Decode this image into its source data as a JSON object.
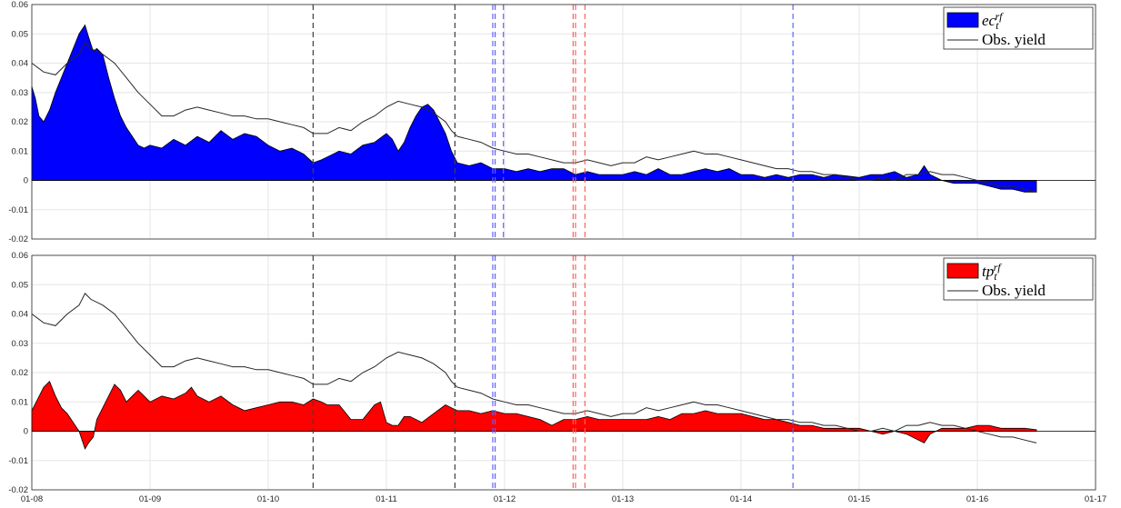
{
  "chart_data": [
    {
      "type": "area",
      "panel": "top",
      "ylim": [
        -0.02,
        0.06
      ],
      "yticks": [
        "-0.02",
        "-0.01",
        "0",
        "0.01",
        "0.02",
        "0.03",
        "0.04",
        "0.05",
        "0.06"
      ],
      "xlim": [
        2008.0,
        2017.0
      ],
      "grid": true,
      "legend_placement": "top-right",
      "colors": {
        "fill": "#0000ff",
        "line": "#262626"
      },
      "series": [
        {
          "name_base": "ec",
          "name_sub": "t",
          "name_sup": "rf",
          "kind": "area",
          "x": [
            2008.0,
            2008.03,
            2008.06,
            2008.1,
            2008.15,
            2008.2,
            2008.25,
            2008.3,
            2008.35,
            2008.4,
            2008.45,
            2008.48,
            2008.52,
            2008.55,
            2008.6,
            2008.65,
            2008.7,
            2008.75,
            2008.8,
            2008.85,
            2008.9,
            2008.95,
            2009.0,
            2009.1,
            2009.2,
            2009.3,
            2009.4,
            2009.5,
            2009.6,
            2009.7,
            2009.8,
            2009.9,
            2010.0,
            2010.1,
            2010.2,
            2010.3,
            2010.38,
            2010.45,
            2010.5,
            2010.6,
            2010.7,
            2010.8,
            2010.9,
            2011.0,
            2011.05,
            2011.1,
            2011.15,
            2011.2,
            2011.25,
            2011.3,
            2011.35,
            2011.4,
            2011.45,
            2011.5,
            2011.55,
            2011.6,
            2011.7,
            2011.8,
            2011.9,
            2012.0,
            2012.1,
            2012.2,
            2012.3,
            2012.4,
            2012.5,
            2012.6,
            2012.7,
            2012.8,
            2012.9,
            2013.0,
            2013.1,
            2013.2,
            2013.3,
            2013.4,
            2013.5,
            2013.6,
            2013.7,
            2013.8,
            2013.9,
            2014.0,
            2014.1,
            2014.2,
            2014.3,
            2014.4,
            2014.5,
            2014.6,
            2014.7,
            2014.8,
            2014.9,
            2015.0,
            2015.1,
            2015.2,
            2015.3,
            2015.4,
            2015.5,
            2015.55,
            2015.6,
            2015.7,
            2015.8,
            2015.9,
            2016.0,
            2016.1,
            2016.2,
            2016.3,
            2016.4,
            2016.5
          ],
          "y": [
            0.032,
            0.028,
            0.022,
            0.02,
            0.024,
            0.03,
            0.035,
            0.04,
            0.045,
            0.05,
            0.053,
            0.049,
            0.044,
            0.045,
            0.043,
            0.035,
            0.028,
            0.022,
            0.018,
            0.015,
            0.012,
            0.011,
            0.012,
            0.011,
            0.014,
            0.012,
            0.015,
            0.013,
            0.017,
            0.014,
            0.016,
            0.015,
            0.012,
            0.01,
            0.011,
            0.009,
            0.006,
            0.007,
            0.008,
            0.01,
            0.009,
            0.012,
            0.013,
            0.016,
            0.014,
            0.01,
            0.013,
            0.018,
            0.022,
            0.025,
            0.026,
            0.024,
            0.02,
            0.016,
            0.01,
            0.006,
            0.005,
            0.006,
            0.004,
            0.004,
            0.003,
            0.004,
            0.003,
            0.004,
            0.004,
            0.002,
            0.003,
            0.002,
            0.002,
            0.002,
            0.003,
            0.002,
            0.004,
            0.002,
            0.002,
            0.003,
            0.004,
            0.003,
            0.004,
            0.002,
            0.002,
            0.001,
            0.002,
            0.001,
            0.002,
            0.002,
            0.001,
            0.002,
            0.0015,
            0.001,
            0.002,
            0.002,
            0.003,
            0.001,
            0.002,
            0.005,
            0.002,
            0.0,
            -0.001,
            -0.001,
            -0.001,
            -0.002,
            -0.003,
            -0.003,
            -0.004,
            -0.004
          ]
        },
        {
          "name": "Obs. yield",
          "kind": "line",
          "x": [
            2008.0,
            2008.1,
            2008.2,
            2008.3,
            2008.4,
            2008.45,
            2008.5,
            2008.6,
            2008.7,
            2008.8,
            2008.9,
            2009.0,
            2009.1,
            2009.2,
            2009.3,
            2009.4,
            2009.5,
            2009.6,
            2009.7,
            2009.8,
            2009.9,
            2010.0,
            2010.1,
            2010.2,
            2010.3,
            2010.38,
            2010.5,
            2010.6,
            2010.7,
            2010.8,
            2010.9,
            2011.0,
            2011.1,
            2011.2,
            2011.3,
            2011.4,
            2011.5,
            2011.55,
            2011.6,
            2011.7,
            2011.8,
            2011.9,
            2012.0,
            2012.1,
            2012.2,
            2012.3,
            2012.4,
            2012.5,
            2012.6,
            2012.7,
            2012.8,
            2012.9,
            2013.0,
            2013.1,
            2013.2,
            2013.3,
            2013.4,
            2013.5,
            2013.6,
            2013.7,
            2013.8,
            2013.9,
            2014.0,
            2014.1,
            2014.2,
            2014.3,
            2014.4,
            2014.5,
            2014.6,
            2014.7,
            2014.8,
            2014.9,
            2015.0,
            2015.1,
            2015.2,
            2015.3,
            2015.4,
            2015.5,
            2015.6,
            2015.7,
            2015.8,
            2015.9,
            2016.0,
            2016.1,
            2016.2,
            2016.3,
            2016.4,
            2016.5
          ],
          "y": [
            0.04,
            0.037,
            0.036,
            0.04,
            0.043,
            0.047,
            0.045,
            0.043,
            0.04,
            0.035,
            0.03,
            0.026,
            0.022,
            0.022,
            0.024,
            0.025,
            0.024,
            0.023,
            0.022,
            0.022,
            0.021,
            0.021,
            0.02,
            0.019,
            0.018,
            0.016,
            0.016,
            0.018,
            0.017,
            0.02,
            0.022,
            0.025,
            0.027,
            0.026,
            0.025,
            0.023,
            0.02,
            0.017,
            0.015,
            0.014,
            0.013,
            0.011,
            0.01,
            0.009,
            0.009,
            0.008,
            0.007,
            0.006,
            0.006,
            0.007,
            0.006,
            0.005,
            0.006,
            0.006,
            0.008,
            0.007,
            0.008,
            0.009,
            0.01,
            0.009,
            0.009,
            0.008,
            0.007,
            0.006,
            0.005,
            0.004,
            0.004,
            0.003,
            0.003,
            0.002,
            0.002,
            0.001,
            0.0,
            0.0,
            0.001,
            0.0,
            0.002,
            0.002,
            0.003,
            0.002,
            0.002,
            0.001,
            0.0,
            -0.001,
            -0.002,
            -0.002,
            -0.003,
            -0.004
          ]
        }
      ],
      "vlines": [
        {
          "x": 2010.38,
          "color": "#404040"
        },
        {
          "x": 2011.58,
          "color": "#404040"
        },
        {
          "x": 2011.9,
          "color": "#6060ff"
        },
        {
          "x": 2011.92,
          "color": "#6060ff"
        },
        {
          "x": 2011.99,
          "color": "#6060ff"
        },
        {
          "x": 2012.58,
          "color": "#ff6060"
        },
        {
          "x": 2012.6,
          "color": "#ff6060"
        },
        {
          "x": 2012.68,
          "color": "#ff6060"
        },
        {
          "x": 2014.44,
          "color": "#6060ff"
        }
      ]
    },
    {
      "type": "area",
      "panel": "bottom",
      "ylim": [
        -0.02,
        0.06
      ],
      "yticks": [
        "-0.02",
        "-0.01",
        "0",
        "0.01",
        "0.02",
        "0.03",
        "0.04",
        "0.05",
        "0.06"
      ],
      "xlim": [
        2008.0,
        2017.0
      ],
      "xticks": [
        "01-08",
        "01-09",
        "01-10",
        "01-11",
        "01-12",
        "01-13",
        "01-14",
        "01-15",
        "01-16",
        "01-17"
      ],
      "grid": true,
      "legend_placement": "top-right",
      "colors": {
        "fill": "#ff0000",
        "line": "#262626"
      },
      "series": [
        {
          "name_base": "tp",
          "name_sub": "t",
          "name_sup": "rf",
          "kind": "area",
          "x": [
            2008.0,
            2008.05,
            2008.1,
            2008.15,
            2008.2,
            2008.25,
            2008.3,
            2008.35,
            2008.4,
            2008.45,
            2008.48,
            2008.52,
            2008.55,
            2008.6,
            2008.65,
            2008.7,
            2008.75,
            2008.8,
            2008.85,
            2008.9,
            2008.95,
            2009.0,
            2009.1,
            2009.2,
            2009.3,
            2009.35,
            2009.4,
            2009.5,
            2009.6,
            2009.7,
            2009.8,
            2009.9,
            2010.0,
            2010.1,
            2010.2,
            2010.3,
            2010.38,
            2010.45,
            2010.5,
            2010.6,
            2010.7,
            2010.8,
            2010.9,
            2010.95,
            2011.0,
            2011.05,
            2011.1,
            2011.15,
            2011.2,
            2011.3,
            2011.4,
            2011.5,
            2011.55,
            2011.6,
            2011.7,
            2011.8,
            2011.9,
            2012.0,
            2012.1,
            2012.2,
            2012.3,
            2012.4,
            2012.5,
            2012.6,
            2012.7,
            2012.8,
            2012.9,
            2013.0,
            2013.1,
            2013.2,
            2013.3,
            2013.4,
            2013.5,
            2013.6,
            2013.7,
            2013.8,
            2013.9,
            2014.0,
            2014.1,
            2014.2,
            2014.3,
            2014.4,
            2014.5,
            2014.6,
            2014.7,
            2014.8,
            2014.9,
            2015.0,
            2015.1,
            2015.2,
            2015.3,
            2015.4,
            2015.5,
            2015.55,
            2015.6,
            2015.7,
            2015.8,
            2015.9,
            2016.0,
            2016.1,
            2016.2,
            2016.3,
            2016.4,
            2016.5
          ],
          "y": [
            0.007,
            0.011,
            0.015,
            0.017,
            0.012,
            0.008,
            0.006,
            0.003,
            0.0,
            -0.006,
            -0.004,
            -0.002,
            0.004,
            0.008,
            0.012,
            0.016,
            0.014,
            0.01,
            0.012,
            0.014,
            0.012,
            0.01,
            0.012,
            0.011,
            0.013,
            0.015,
            0.012,
            0.01,
            0.012,
            0.009,
            0.007,
            0.008,
            0.009,
            0.01,
            0.01,
            0.009,
            0.011,
            0.01,
            0.009,
            0.009,
            0.004,
            0.004,
            0.009,
            0.01,
            0.003,
            0.002,
            0.002,
            0.005,
            0.005,
            0.003,
            0.006,
            0.009,
            0.008,
            0.007,
            0.007,
            0.006,
            0.007,
            0.006,
            0.006,
            0.005,
            0.004,
            0.002,
            0.004,
            0.004,
            0.005,
            0.004,
            0.004,
            0.004,
            0.004,
            0.004,
            0.005,
            0.004,
            0.006,
            0.006,
            0.007,
            0.006,
            0.006,
            0.006,
            0.005,
            0.004,
            0.004,
            0.003,
            0.002,
            0.002,
            0.001,
            0.001,
            0.001,
            0.001,
            0.0,
            -0.001,
            0.0,
            -0.001,
            -0.003,
            -0.004,
            -0.001,
            0.001,
            0.001,
            0.001,
            0.002,
            0.002,
            0.001,
            0.001,
            0.001,
            0.0005
          ]
        },
        {
          "name": "Obs. yield",
          "kind": "line",
          "x": [
            2008.0,
            2008.1,
            2008.2,
            2008.3,
            2008.4,
            2008.45,
            2008.5,
            2008.6,
            2008.7,
            2008.8,
            2008.9,
            2009.0,
            2009.1,
            2009.2,
            2009.3,
            2009.4,
            2009.5,
            2009.6,
            2009.7,
            2009.8,
            2009.9,
            2010.0,
            2010.1,
            2010.2,
            2010.3,
            2010.38,
            2010.5,
            2010.6,
            2010.7,
            2010.8,
            2010.9,
            2011.0,
            2011.1,
            2011.2,
            2011.3,
            2011.4,
            2011.5,
            2011.55,
            2011.6,
            2011.7,
            2011.8,
            2011.9,
            2012.0,
            2012.1,
            2012.2,
            2012.3,
            2012.4,
            2012.5,
            2012.6,
            2012.7,
            2012.8,
            2012.9,
            2013.0,
            2013.1,
            2013.2,
            2013.3,
            2013.4,
            2013.5,
            2013.6,
            2013.7,
            2013.8,
            2013.9,
            2014.0,
            2014.1,
            2014.2,
            2014.3,
            2014.4,
            2014.5,
            2014.6,
            2014.7,
            2014.8,
            2014.9,
            2015.0,
            2015.1,
            2015.2,
            2015.3,
            2015.4,
            2015.5,
            2015.6,
            2015.7,
            2015.8,
            2015.9,
            2016.0,
            2016.1,
            2016.2,
            2016.3,
            2016.4,
            2016.5
          ],
          "y": [
            0.04,
            0.037,
            0.036,
            0.04,
            0.043,
            0.047,
            0.045,
            0.043,
            0.04,
            0.035,
            0.03,
            0.026,
            0.022,
            0.022,
            0.024,
            0.025,
            0.024,
            0.023,
            0.022,
            0.022,
            0.021,
            0.021,
            0.02,
            0.019,
            0.018,
            0.016,
            0.016,
            0.018,
            0.017,
            0.02,
            0.022,
            0.025,
            0.027,
            0.026,
            0.025,
            0.023,
            0.02,
            0.017,
            0.015,
            0.014,
            0.013,
            0.011,
            0.01,
            0.009,
            0.009,
            0.008,
            0.007,
            0.006,
            0.006,
            0.007,
            0.006,
            0.005,
            0.006,
            0.006,
            0.008,
            0.007,
            0.008,
            0.009,
            0.01,
            0.009,
            0.009,
            0.008,
            0.007,
            0.006,
            0.005,
            0.004,
            0.004,
            0.003,
            0.003,
            0.002,
            0.002,
            0.001,
            0.0,
            0.0,
            0.001,
            0.0,
            0.002,
            0.002,
            0.003,
            0.002,
            0.002,
            0.001,
            0.0,
            -0.001,
            -0.002,
            -0.002,
            -0.003,
            -0.004
          ]
        }
      ],
      "vlines": [
        {
          "x": 2010.38,
          "color": "#404040"
        },
        {
          "x": 2011.58,
          "color": "#404040"
        },
        {
          "x": 2011.9,
          "color": "#6060ff"
        },
        {
          "x": 2011.92,
          "color": "#6060ff"
        },
        {
          "x": 2012.58,
          "color": "#ff6060"
        },
        {
          "x": 2012.6,
          "color": "#ff6060"
        },
        {
          "x": 2012.68,
          "color": "#ff6060"
        },
        {
          "x": 2014.44,
          "color": "#6060ff"
        }
      ]
    }
  ]
}
